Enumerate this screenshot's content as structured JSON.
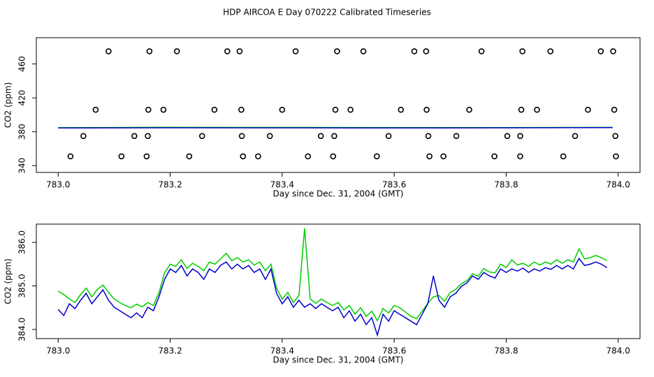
{
  "title": "HDP AIRCOA E  Day 070222  Calibrated Timeseries",
  "chart_data": [
    {
      "type": "scatter",
      "ylabel": "CO2 (ppm)",
      "xlabel": "Day since Dec. 31, 2004 (GMT)",
      "xlim": [
        782.961,
        784.039
      ],
      "ylim": [
        332,
        491
      ],
      "xticks": [
        {
          "value": 783.0,
          "label": "783.0"
        },
        783.2,
        783.4,
        783.6,
        783.8,
        {
          "value": 784.0,
          "label": "784.0"
        }
      ],
      "yticks": [
        340,
        380,
        420,
        460
      ],
      "series": [
        {
          "style": "points",
          "color": "#000000",
          "x": [
            783.09,
            783.163,
            783.212,
            783.302,
            783.324,
            783.424,
            783.498,
            783.545,
            783.636,
            783.657,
            783.756,
            783.829,
            783.879,
            783.969,
            783.991,
            783.067,
            783.161,
            783.188,
            783.279,
            783.327,
            783.4,
            783.495,
            783.522,
            783.612,
            783.658,
            783.734,
            783.827,
            783.855,
            783.946,
            783.993,
            783.045,
            783.136,
            783.16,
            783.257,
            783.328,
            783.378,
            783.469,
            783.493,
            783.59,
            783.661,
            783.711,
            783.802,
            783.825,
            783.923,
            783.995,
            783.022,
            783.113,
            783.158,
            783.234,
            783.33,
            783.357,
            783.446,
            783.491,
            783.569,
            783.663,
            783.688,
            783.779,
            783.825,
            783.902,
            783.996
          ],
          "values": [
            475,
            475,
            475,
            475,
            475,
            475,
            475,
            475,
            475,
            475,
            475,
            475,
            475,
            475,
            475,
            406,
            406,
            406,
            406,
            406,
            406,
            406,
            406,
            406,
            406,
            406,
            406,
            406,
            406,
            406,
            375,
            375,
            375,
            375,
            375,
            375,
            375,
            375,
            375,
            375,
            375,
            375,
            375,
            375,
            375,
            351,
            351,
            351,
            351,
            351,
            351,
            351,
            351,
            351,
            351,
            351,
            351,
            351,
            351,
            351
          ]
        },
        {
          "style": "line",
          "color": "#00cc00",
          "x": [
            783.0,
            783.2,
            783.44,
            783.7,
            783.99
          ],
          "values": [
            384.8,
            385.3,
            385.1,
            384.9,
            385.2
          ]
        },
        {
          "style": "line",
          "color": "#0000cc",
          "x": [
            783.0,
            783.2,
            783.44,
            783.7,
            783.99
          ],
          "values": [
            384.5,
            384.7,
            384.6,
            384.5,
            384.9
          ]
        }
      ]
    },
    {
      "type": "line",
      "ylabel": "CO2 (ppm)",
      "xlabel": "Day since Dec. 31, 2004 (GMT)",
      "xlim": [
        782.961,
        784.039
      ],
      "ylim": [
        383.79,
        386.42
      ],
      "xticks": [
        {
          "value": 783.0,
          "label": "783.0"
        },
        783.2,
        783.4,
        783.6,
        783.8,
        {
          "value": 784.0,
          "label": "784.0"
        }
      ],
      "yticks": [
        {
          "value": 384.0,
          "label": "384.0"
        },
        {
          "value": 385.0,
          "label": "385.0"
        },
        {
          "value": 386.0,
          "label": "386.0"
        }
      ],
      "x": [
        783.0,
        783.01,
        783.02,
        783.03,
        783.04,
        783.05,
        783.06,
        783.07,
        783.08,
        783.09,
        783.1,
        783.11,
        783.12,
        783.13,
        783.14,
        783.15,
        783.16,
        783.17,
        783.18,
        783.19,
        783.2,
        783.21,
        783.22,
        783.23,
        783.24,
        783.25,
        783.26,
        783.27,
        783.28,
        783.29,
        783.3,
        783.31,
        783.32,
        783.33,
        783.34,
        783.35,
        783.36,
        783.37,
        783.38,
        783.39,
        783.4,
        783.41,
        783.42,
        783.43,
        783.44,
        783.45,
        783.46,
        783.47,
        783.48,
        783.49,
        783.5,
        783.51,
        783.52,
        783.53,
        783.54,
        783.55,
        783.56,
        783.57,
        783.58,
        783.59,
        783.6,
        783.61,
        783.62,
        783.63,
        783.64,
        783.65,
        783.66,
        783.67,
        783.68,
        783.69,
        783.7,
        783.71,
        783.72,
        783.73,
        783.74,
        783.75,
        783.76,
        783.77,
        783.78,
        783.79,
        783.8,
        783.81,
        783.82,
        783.83,
        783.84,
        783.85,
        783.86,
        783.87,
        783.88,
        783.89,
        783.9,
        783.91,
        783.92,
        783.93,
        783.94,
        783.95,
        783.96,
        783.97,
        783.98
      ],
      "series": [
        {
          "color": "#00cc00",
          "values": [
            384.88,
            384.8,
            384.7,
            384.62,
            384.8,
            384.95,
            384.75,
            384.92,
            385.02,
            384.85,
            384.7,
            384.62,
            384.55,
            384.5,
            384.58,
            384.52,
            384.62,
            384.55,
            384.85,
            385.3,
            385.5,
            385.45,
            385.6,
            385.4,
            385.52,
            385.45,
            385.35,
            385.55,
            385.5,
            385.62,
            385.75,
            385.58,
            385.65,
            385.55,
            385.6,
            385.48,
            385.55,
            385.35,
            385.5,
            384.95,
            384.7,
            384.85,
            384.62,
            384.78,
            386.32,
            384.7,
            384.6,
            384.7,
            384.62,
            384.55,
            384.62,
            384.45,
            384.55,
            384.35,
            384.5,
            384.3,
            384.42,
            384.2,
            384.48,
            384.38,
            384.55,
            384.5,
            384.4,
            384.3,
            384.25,
            384.42,
            384.6,
            384.75,
            384.78,
            384.65,
            384.85,
            384.92,
            385.05,
            385.12,
            385.28,
            385.22,
            385.4,
            385.32,
            385.3,
            385.5,
            385.42,
            385.6,
            385.48,
            385.52,
            385.45,
            385.55,
            385.48,
            385.55,
            385.5,
            385.6,
            385.52,
            385.6,
            385.55,
            385.85,
            385.62,
            385.65,
            385.7,
            385.65,
            385.58
          ]
        },
        {
          "color": "#0000cc",
          "values": [
            384.46,
            384.32,
            384.59,
            384.48,
            384.67,
            384.83,
            384.59,
            384.75,
            384.91,
            384.67,
            384.51,
            384.43,
            384.35,
            384.27,
            384.38,
            384.27,
            384.51,
            384.43,
            384.75,
            385.15,
            385.39,
            385.31,
            385.47,
            385.23,
            385.39,
            385.31,
            385.15,
            385.39,
            385.31,
            385.47,
            385.55,
            385.39,
            385.5,
            385.39,
            385.47,
            385.31,
            385.39,
            385.15,
            385.39,
            384.83,
            384.59,
            384.75,
            384.51,
            384.67,
            384.51,
            384.59,
            384.48,
            384.59,
            384.51,
            384.43,
            384.51,
            384.27,
            384.43,
            384.19,
            384.35,
            384.11,
            384.27,
            383.87,
            384.35,
            384.19,
            384.43,
            384.35,
            384.27,
            384.19,
            384.11,
            384.35,
            384.59,
            385.23,
            384.67,
            384.51,
            384.75,
            384.83,
            384.99,
            385.07,
            385.23,
            385.15,
            385.31,
            385.23,
            385.18,
            385.39,
            385.31,
            385.39,
            385.34,
            385.41,
            385.31,
            385.39,
            385.34,
            385.42,
            385.38,
            385.47,
            385.39,
            385.47,
            385.39,
            385.63,
            385.47,
            385.5,
            385.55,
            385.5,
            385.42
          ]
        }
      ]
    }
  ]
}
